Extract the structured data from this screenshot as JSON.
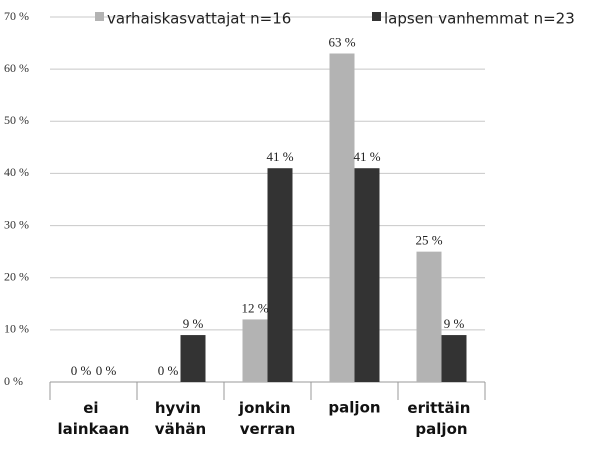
{
  "chart_data": {
    "type": "bar",
    "categories": [
      "ei lainkaan",
      "hyvin vähän",
      "jonkin verran",
      "paljon",
      "erittäin paljon"
    ],
    "series": [
      {
        "name": "varhaiskasvattajat n=16",
        "color": "#b3b3b3",
        "values": [
          0,
          0,
          12,
          63,
          25
        ],
        "value_labels": [
          "0 %",
          "0 %",
          "12 %",
          "63 %",
          "25 %"
        ]
      },
      {
        "name": "lapsen vanhemmat n=23",
        "color": "#333333",
        "values": [
          0,
          9,
          41,
          41,
          9
        ],
        "value_labels": [
          "0 %",
          "9 %",
          "41 %",
          "41 %",
          "9 %"
        ]
      }
    ],
    "ylim": [
      0,
      70
    ],
    "yticks": [
      {
        "value": 0,
        "label": "0 %"
      },
      {
        "value": 10,
        "label": "10 %"
      },
      {
        "value": 20,
        "label": "20 %"
      },
      {
        "value": 30,
        "label": "30 %"
      },
      {
        "value": 40,
        "label": "40 %"
      },
      {
        "value": 50,
        "label": "50 %"
      },
      {
        "value": 60,
        "label": "60 %"
      },
      {
        "value": 70,
        "label": "70 %"
      }
    ],
    "grid": true,
    "legend": "top"
  }
}
